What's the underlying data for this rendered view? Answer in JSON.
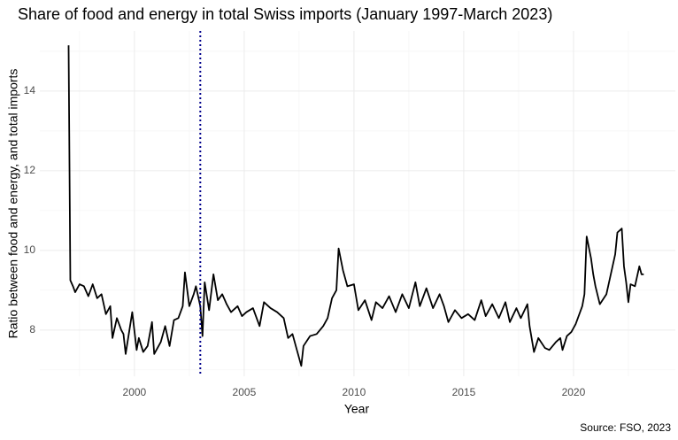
{
  "chart_data": {
    "type": "line",
    "title": "Share of food and energy in total Swiss imports (January 1997-March 2023)",
    "xlabel": "Year",
    "ylabel": "Ratio between food and energy, and total imports",
    "caption": "Source: FSO, 2023",
    "xlim": [
      1995.69,
      2024.64
    ],
    "ylim": [
      6.84,
      15.51
    ],
    "xticks": [
      2000,
      2005,
      2010,
      2015,
      2020
    ],
    "yticks": [
      8,
      10,
      12,
      14
    ],
    "xminor": [
      1997.5,
      2002.5,
      2007.5,
      2012.5,
      2017.5,
      2022.5
    ],
    "yminor": [
      7,
      9,
      11,
      13,
      15
    ],
    "grid": true,
    "vline": {
      "x": 2003,
      "color": "#00008b",
      "style": "dotted"
    },
    "series": [
      {
        "color": "#000000",
        "x": [
          1997.0,
          1997.04,
          1997.08,
          1997.2,
          1997.3,
          1997.5,
          1997.7,
          1997.9,
          1998.1,
          1998.3,
          1998.5,
          1998.7,
          1998.9,
          1999.0,
          1999.2,
          1999.4,
          1999.5,
          1999.6,
          1999.8,
          1999.9,
          2000.1,
          2000.2,
          2000.4,
          2000.6,
          2000.8,
          2000.9,
          2001.0,
          2001.2,
          2001.4,
          2001.6,
          2001.8,
          2002.0,
          2002.2,
          2002.3,
          2002.5,
          2002.7,
          2002.8,
          2003.0,
          2003.1,
          2003.2,
          2003.4,
          2003.6,
          2003.8,
          2004.0,
          2004.2,
          2004.4,
          2004.7,
          2004.9,
          2005.1,
          2005.4,
          2005.7,
          2005.9,
          2006.2,
          2006.5,
          2006.8,
          2007.0,
          2007.2,
          2007.4,
          2007.6,
          2007.7,
          2008.0,
          2008.3,
          2008.6,
          2008.8,
          2009.0,
          2009.2,
          2009.3,
          2009.5,
          2009.7,
          2010.0,
          2010.2,
          2010.5,
          2010.8,
          2011.0,
          2011.3,
          2011.6,
          2011.9,
          2012.2,
          2012.5,
          2012.8,
          2013.0,
          2013.3,
          2013.6,
          2013.9,
          2014.1,
          2014.3,
          2014.6,
          2014.9,
          2015.2,
          2015.5,
          2015.8,
          2016.0,
          2016.3,
          2016.6,
          2016.9,
          2017.1,
          2017.4,
          2017.6,
          2017.9,
          2018.0,
          2018.2,
          2018.4,
          2018.7,
          2018.9,
          2019.2,
          2019.4,
          2019.5,
          2019.7,
          2019.9,
          2020.1,
          2020.2,
          2020.4,
          2020.5,
          2020.6,
          2020.8,
          2020.9,
          2021.0,
          2021.2,
          2021.5,
          2021.7,
          2021.9,
          2022.0,
          2022.2,
          2022.3,
          2022.4,
          2022.5,
          2022.6,
          2022.8,
          2023.0,
          2023.1,
          2023.2
        ],
        "values": [
          15.15,
          12.2,
          9.25,
          9.1,
          8.95,
          9.15,
          9.1,
          8.85,
          9.15,
          8.8,
          8.9,
          8.4,
          8.6,
          7.8,
          8.3,
          8.0,
          7.9,
          7.4,
          8.1,
          8.45,
          7.5,
          7.8,
          7.45,
          7.6,
          8.2,
          7.4,
          7.5,
          7.7,
          8.1,
          7.6,
          8.25,
          8.3,
          8.6,
          9.45,
          8.6,
          8.9,
          9.1,
          8.6,
          7.85,
          9.2,
          8.5,
          9.4,
          8.75,
          8.9,
          8.65,
          8.45,
          8.6,
          8.35,
          8.45,
          8.55,
          8.1,
          8.7,
          8.55,
          8.45,
          8.3,
          7.8,
          7.9,
          7.5,
          7.1,
          7.6,
          7.85,
          7.9,
          8.1,
          8.3,
          8.8,
          9.0,
          10.05,
          9.5,
          9.1,
          9.15,
          8.5,
          8.75,
          8.25,
          8.7,
          8.55,
          8.85,
          8.45,
          8.9,
          8.55,
          9.2,
          8.6,
          9.05,
          8.55,
          8.9,
          8.6,
          8.2,
          8.5,
          8.3,
          8.4,
          8.25,
          8.75,
          8.35,
          8.65,
          8.3,
          8.7,
          8.2,
          8.55,
          8.3,
          8.65,
          8.1,
          7.45,
          7.8,
          7.55,
          7.5,
          7.7,
          7.8,
          7.5,
          7.85,
          7.95,
          8.15,
          8.3,
          8.6,
          8.9,
          10.35,
          9.8,
          9.4,
          9.1,
          8.65,
          8.9,
          9.4,
          9.9,
          10.45,
          10.55,
          9.6,
          9.2,
          8.7,
          9.15,
          9.1,
          9.6,
          9.4,
          9.4
        ]
      }
    ]
  }
}
